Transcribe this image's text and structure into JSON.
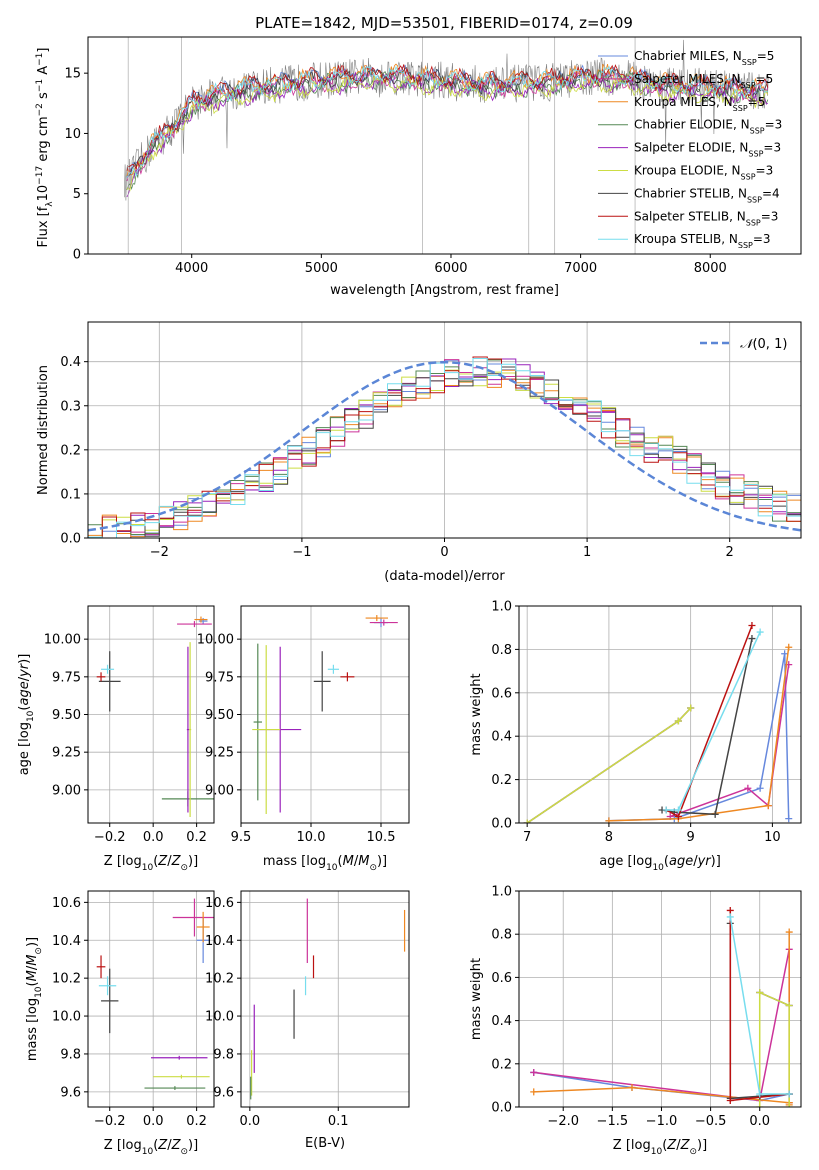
{
  "title": "PLATE=1842, MJD=53501, FIBERID=0174, z=0.09",
  "colors": {
    "chabrier_miles": "#6688dd",
    "salpeter_miles": "#cc3399",
    "kroupa_miles": "#ee8822",
    "chabrier_elodie": "#558855",
    "salpeter_elodie": "#9922bb",
    "kroupa_elodie": "#ccdd44",
    "chabrier_stelib": "#444444",
    "salpeter_stelib": "#bb1111",
    "kroupa_stelib": "#77ddee",
    "normal": "#5b86d6",
    "data": "#808080"
  },
  "chart_data": [
    {
      "id": "spectrum",
      "type": "line",
      "title": "PLATE=1842, MJD=53501, FIBERID=0174, z=0.09",
      "xlabel": "wavelength [Angstrom, rest frame]",
      "ylabel": "Flux [f_λ 10^-17 erg cm^-2 s^-1 A^-1]",
      "xlim": [
        3200,
        8700
      ],
      "ylim": [
        0,
        18
      ],
      "xticks": [
        "4000",
        "5000",
        "6000",
        "7000",
        "8000"
      ],
      "yticks": [
        "0",
        "5",
        "10",
        "15"
      ],
      "legend_position": "right",
      "series": [
        {
          "name": "Chabrier MILES, N_SSP=5",
          "key": "chabrier_miles"
        },
        {
          "name": "Salpeter MILES, N_SSP=5",
          "key": "salpeter_miles"
        },
        {
          "name": "Kroupa MILES, N_SSP=5",
          "key": "kroupa_miles"
        },
        {
          "name": "Chabrier ELODIE, N_SSP=3",
          "key": "chabrier_elodie"
        },
        {
          "name": "Salpeter ELODIE, N_SSP=3",
          "key": "salpeter_elodie"
        },
        {
          "name": "Kroupa ELODIE, N_SSP=3",
          "key": "kroupa_elodie"
        },
        {
          "name": "Chabrier STELIB, N_SSP=4",
          "key": "chabrier_stelib"
        },
        {
          "name": "Salpeter STELIB, N_SSP=3",
          "key": "salpeter_stelib"
        },
        {
          "name": "Kroupa STELIB, N_SSP=3",
          "key": "kroupa_stelib"
        }
      ],
      "continuum": {
        "x": [
          3500,
          3700,
          3900,
          4000,
          4200,
          4500,
          4800,
          5000,
          5200,
          5500,
          5800,
          6000,
          6300,
          6500,
          6800,
          7000,
          7200,
          7400,
          7600,
          8000,
          8400
        ],
        "y": [
          6,
          9,
          11,
          12.5,
          13.2,
          13.8,
          14.2,
          14.4,
          14.6,
          14.8,
          14.5,
          14.3,
          14.0,
          14.1,
          14.3,
          14.6,
          14.7,
          14.5,
          14.0,
          13.8,
          13.5
        ]
      }
    },
    {
      "id": "residuals",
      "type": "line",
      "xlabel": "(data-model)/error",
      "ylabel": "Normed distribution",
      "xlim": [
        -2.5,
        2.5
      ],
      "ylim": [
        0,
        0.49
      ],
      "xticks": [
        "-2",
        "-1",
        "0",
        "1",
        "2"
      ],
      "yticks": [
        "0.0",
        "0.1",
        "0.2",
        "0.3",
        "0.4"
      ],
      "legend": "N(0,1)",
      "normal_mean": 0,
      "normal_sigma": 1
    },
    {
      "id": "age_vs_Z",
      "type": "scatter",
      "xlabel": "Z [log10(Z/Z⊙)]",
      "ylabel": "age [log10(age/yr)]",
      "xlim": [
        -0.3,
        0.28
      ],
      "ylim": [
        8.78,
        10.22
      ],
      "xticks": [
        "-0.2",
        "0.0",
        "0.2"
      ],
      "yticks": [
        "9.00",
        "9.25",
        "9.50",
        "9.75",
        "10.00"
      ],
      "points": [
        {
          "key": "chabrier_miles",
          "x": 0.23,
          "y": 10.12,
          "xerr": 0.02,
          "yerr": 0.02
        },
        {
          "key": "salpeter_miles",
          "x": 0.19,
          "y": 10.1,
          "xerr": 0.08,
          "yerr": 0.02
        },
        {
          "key": "kroupa_miles",
          "x": 0.22,
          "y": 10.13,
          "xerr": 0.03,
          "yerr": 0.02
        },
        {
          "key": "chabrier_elodie",
          "x": 0.16,
          "y": 8.94,
          "xerr": 0.12,
          "yerr": 0.05
        },
        {
          "key": "salpeter_elodie",
          "x": 0.16,
          "y": 9.4,
          "xerr": 0.005,
          "yerr": 0.55
        },
        {
          "key": "kroupa_elodie",
          "x": 0.17,
          "y": 9.4,
          "xerr": 0.005,
          "yerr": 0.58
        },
        {
          "key": "chabrier_stelib",
          "x": -0.2,
          "y": 9.72,
          "xerr": 0.05,
          "yerr": 0.2
        },
        {
          "key": "salpeter_stelib",
          "x": -0.24,
          "y": 9.75,
          "xerr": 0.02,
          "yerr": 0.03
        },
        {
          "key": "kroupa_stelib",
          "x": -0.21,
          "y": 9.8,
          "xerr": 0.03,
          "yerr": 0.03
        }
      ]
    },
    {
      "id": "age_vs_mass",
      "type": "scatter",
      "xlabel": "mass [log10(M/M⊙)]",
      "xlim": [
        9.5,
        10.7
      ],
      "ylim": [
        8.78,
        10.22
      ],
      "xticks": [
        "9.5",
        "10.0",
        "10.5"
      ],
      "yticks": [
        "9.00",
        "9.25",
        "9.50",
        "9.75",
        "10.00"
      ],
      "points": [
        {
          "key": "chabrier_miles",
          "x": 10.5,
          "y": 10.11,
          "xerr": 0.05,
          "yerr": 0.03
        },
        {
          "key": "salpeter_miles",
          "x": 10.52,
          "y": 10.11,
          "xerr": 0.1,
          "yerr": 0.02
        },
        {
          "key": "kroupa_miles",
          "x": 10.47,
          "y": 10.14,
          "xerr": 0.08,
          "yerr": 0.02
        },
        {
          "key": "chabrier_elodie",
          "x": 9.62,
          "y": 9.45,
          "xerr": 0.03,
          "yerr": 0.52
        },
        {
          "key": "salpeter_elodie",
          "x": 9.78,
          "y": 9.4,
          "xerr": 0.15,
          "yerr": 0.55
        },
        {
          "key": "kroupa_elodie",
          "x": 9.68,
          "y": 9.4,
          "xerr": 0.1,
          "yerr": 0.56
        },
        {
          "key": "chabrier_stelib",
          "x": 10.08,
          "y": 9.72,
          "xerr": 0.06,
          "yerr": 0.2
        },
        {
          "key": "salpeter_stelib",
          "x": 10.26,
          "y": 9.75,
          "xerr": 0.05,
          "yerr": 0.03
        },
        {
          "key": "kroupa_stelib",
          "x": 10.16,
          "y": 9.8,
          "xerr": 0.04,
          "yerr": 0.03
        }
      ]
    },
    {
      "id": "weight_vs_age",
      "type": "line",
      "xlabel": "age [log10(age/yr)]",
      "ylabel": "mass weight",
      "xlim": [
        6.9,
        10.35
      ],
      "ylim": [
        0,
        1.0
      ],
      "xticks": [
        "7",
        "8",
        "9",
        "10"
      ],
      "yticks": [
        "0.0",
        "0.2",
        "0.4",
        "0.6",
        "0.8",
        "1.0"
      ],
      "series": [
        {
          "key": "chabrier_miles",
          "x": [
            8.0,
            8.8,
            9.85,
            10.15,
            10.2
          ],
          "y": [
            0.01,
            0.02,
            0.16,
            0.78,
            0.02
          ]
        },
        {
          "key": "salpeter_miles",
          "x": [
            8.75,
            9.7,
            9.95,
            10.2
          ],
          "y": [
            0.03,
            0.16,
            0.08,
            0.73
          ]
        },
        {
          "key": "kroupa_miles",
          "x": [
            8.0,
            8.85,
            9.95,
            10.2
          ],
          "y": [
            0.01,
            0.02,
            0.08,
            0.81
          ]
        },
        {
          "key": "chabrier_elodie",
          "x": [
            7.0,
            8.85,
            9.0
          ],
          "y": [
            0.0,
            0.47,
            0.53
          ]
        },
        {
          "key": "salpeter_elodie",
          "x": [
            7.0,
            8.85,
            9.0
          ],
          "y": [
            0.0,
            0.47,
            0.53
          ]
        },
        {
          "key": "kroupa_elodie",
          "x": [
            7.0,
            8.85,
            9.0
          ],
          "y": [
            0.0,
            0.47,
            0.53
          ]
        },
        {
          "key": "chabrier_stelib",
          "x": [
            8.65,
            8.8,
            9.3,
            9.75
          ],
          "y": [
            0.06,
            0.05,
            0.04,
            0.85
          ]
        },
        {
          "key": "salpeter_stelib",
          "x": [
            8.7,
            8.85,
            9.75
          ],
          "y": [
            0.06,
            0.03,
            0.91
          ]
        },
        {
          "key": "kroupa_stelib",
          "x": [
            8.7,
            8.85,
            9.85
          ],
          "y": [
            0.06,
            0.06,
            0.88
          ]
        }
      ]
    },
    {
      "id": "mass_vs_Z",
      "type": "scatter",
      "xlabel": "Z [log10(Z/Z⊙)]",
      "ylabel": "mass [log10(M/M⊙)]",
      "xlim": [
        -0.3,
        0.28
      ],
      "ylim": [
        9.52,
        10.66
      ],
      "xticks": [
        "-0.2",
        "0.0",
        "0.2"
      ],
      "yticks": [
        "9.6",
        "9.8",
        "10.0",
        "10.2",
        "10.4",
        "10.6"
      ],
      "points": [
        {
          "key": "chabrier_miles",
          "x": 0.23,
          "y": 10.4,
          "xerr": 0.03,
          "yerr": 0.12
        },
        {
          "key": "salpeter_miles",
          "x": 0.19,
          "y": 10.52,
          "xerr": 0.1,
          "yerr": 0.1
        },
        {
          "key": "kroupa_miles",
          "x": 0.23,
          "y": 10.47,
          "xerr": 0.03,
          "yerr": 0.08
        },
        {
          "key": "chabrier_elodie",
          "x": 0.1,
          "y": 9.62,
          "xerr": 0.14,
          "yerr": 0.005
        },
        {
          "key": "salpeter_elodie",
          "x": 0.12,
          "y": 9.78,
          "xerr": 0.13,
          "yerr": 0.005
        },
        {
          "key": "kroupa_elodie",
          "x": 0.13,
          "y": 9.68,
          "xerr": 0.13,
          "yerr": 0.005
        },
        {
          "key": "chabrier_stelib",
          "x": -0.2,
          "y": 10.08,
          "xerr": 0.04,
          "yerr": 0.17
        },
        {
          "key": "salpeter_stelib",
          "x": -0.24,
          "y": 10.26,
          "xerr": 0.02,
          "yerr": 0.06
        },
        {
          "key": "kroupa_stelib",
          "x": -0.21,
          "y": 10.16,
          "xerr": 0.04,
          "yerr": 0.05
        }
      ]
    },
    {
      "id": "mass_vs_ebv",
      "type": "scatter",
      "xlabel": "E(B-V)",
      "xlim": [
        -0.01,
        0.18
      ],
      "ylim": [
        9.52,
        10.66
      ],
      "xticks": [
        "0.0",
        "0.1"
      ],
      "yticks": [
        "9.6",
        "9.8",
        "10.0",
        "10.2",
        "10.4",
        "10.6"
      ],
      "points": [
        {
          "key": "kroupa_miles",
          "x": 0.175,
          "y": 10.45,
          "xerr": 0.0,
          "yerr": 0.11
        },
        {
          "key": "salpeter_miles",
          "x": 0.065,
          "y": 10.45,
          "xerr": 0.0,
          "yerr": 0.17
        },
        {
          "key": "chabrier_stelib",
          "x": 0.05,
          "y": 10.01,
          "xerr": 0.0,
          "yerr": 0.13
        },
        {
          "key": "kroupa_stelib",
          "x": 0.063,
          "y": 10.16,
          "xerr": 0.0,
          "yerr": 0.05
        },
        {
          "key": "salpeter_stelib",
          "x": 0.072,
          "y": 10.26,
          "xerr": 0.0,
          "yerr": 0.06
        },
        {
          "key": "salpeter_elodie",
          "x": 0.005,
          "y": 9.88,
          "xerr": 0.0,
          "yerr": 0.18
        },
        {
          "key": "kroupa_elodie",
          "x": 0.002,
          "y": 9.7,
          "xerr": 0.0,
          "yerr": 0.12
        },
        {
          "key": "chabrier_elodie",
          "x": 0.001,
          "y": 9.62,
          "xerr": 0.0,
          "yerr": 0.06
        }
      ]
    },
    {
      "id": "weight_vs_Z",
      "type": "line",
      "xlabel": "Z [log10(Z/Z⊙)]",
      "ylabel": "mass weight",
      "xlim": [
        -2.45,
        0.42
      ],
      "ylim": [
        0,
        1.0
      ],
      "xticks": [
        "-2.0",
        "-1.5",
        "-1.0",
        "-0.5",
        "0.0"
      ],
      "yticks": [
        "0.0",
        "0.2",
        "0.4",
        "0.6",
        "0.8",
        "1.0"
      ],
      "series": [
        {
          "key": "chabrier_miles",
          "x": [
            -2.3,
            -1.3,
            0.0,
            0.3
          ],
          "y": [
            0.16,
            0.09,
            0.03,
            0.06
          ]
        },
        {
          "key": "salpeter_miles",
          "x": [
            -2.3,
            0.0,
            0.3,
            0.3
          ],
          "y": [
            0.16,
            0.03,
            0.73,
            0.02
          ]
        },
        {
          "key": "kroupa_miles",
          "x": [
            -2.3,
            -1.3,
            0.3,
            0.3,
            0.3
          ],
          "y": [
            0.07,
            0.09,
            0.02,
            0.81,
            0.01
          ]
        },
        {
          "key": "chabrier_elodie",
          "x": [
            0.0,
            0.3
          ],
          "y": [
            0.53,
            0.47
          ]
        },
        {
          "key": "salpeter_elodie",
          "x": [
            0.0,
            0.3
          ],
          "y": [
            0.53,
            0.47
          ]
        },
        {
          "key": "kroupa_elodie",
          "x": [
            0.0,
            0.0,
            0.3,
            0.3
          ],
          "y": [
            0.0,
            0.53,
            0.47,
            0.0
          ]
        },
        {
          "key": "chabrier_stelib",
          "x": [
            -0.3,
            -0.3,
            0.0,
            0.3
          ],
          "y": [
            0.85,
            0.04,
            0.05,
            0.06
          ]
        },
        {
          "key": "salpeter_stelib",
          "x": [
            -0.3,
            -0.3,
            0.3
          ],
          "y": [
            0.91,
            0.03,
            0.06
          ]
        },
        {
          "key": "kroupa_stelib",
          "x": [
            -0.3,
            0.0,
            0.3
          ],
          "y": [
            0.88,
            0.06,
            0.06
          ]
        }
      ]
    }
  ]
}
